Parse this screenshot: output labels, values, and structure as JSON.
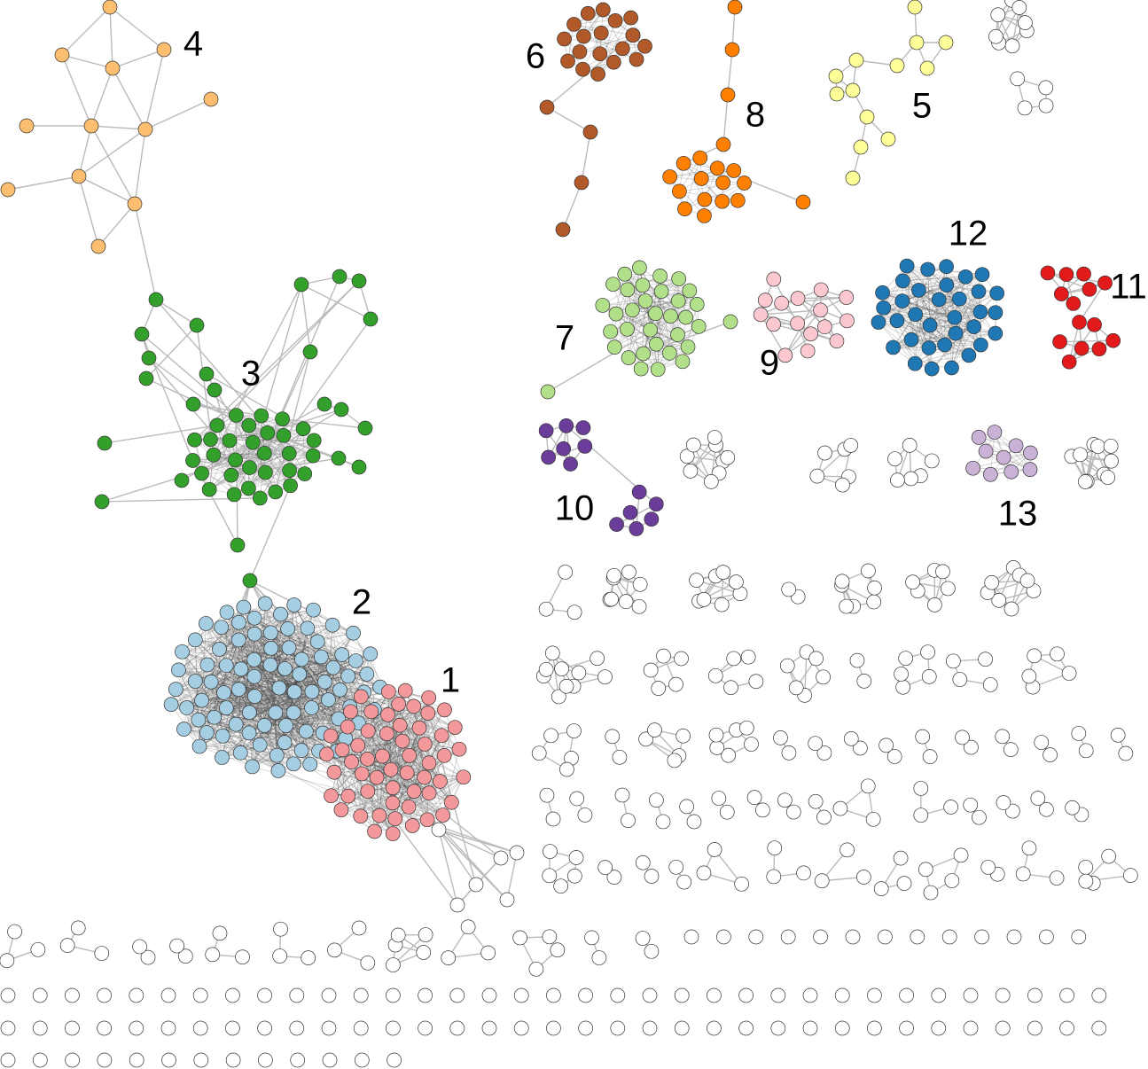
{
  "clusters": [
    {
      "label": "1",
      "color": "#f4999b"
    },
    {
      "label": "2",
      "color": "#a6cee3"
    },
    {
      "label": "3",
      "color": "#33a02c"
    },
    {
      "label": "4",
      "color": "#fdbf6f"
    },
    {
      "label": "5",
      "color": "#ffff99"
    },
    {
      "label": "6",
      "color": "#b15928"
    },
    {
      "label": "7",
      "color": "#b2df8a"
    },
    {
      "label": "8",
      "color": "#ff7f00"
    },
    {
      "label": "9",
      "color": "#fbc8cf"
    },
    {
      "label": "10",
      "color": "#6a3d9a"
    },
    {
      "label": "11",
      "color": "#e31a1c"
    },
    {
      "label": "12",
      "color": "#1f78b4"
    },
    {
      "label": "13",
      "color": "#cab2d6"
    }
  ]
}
